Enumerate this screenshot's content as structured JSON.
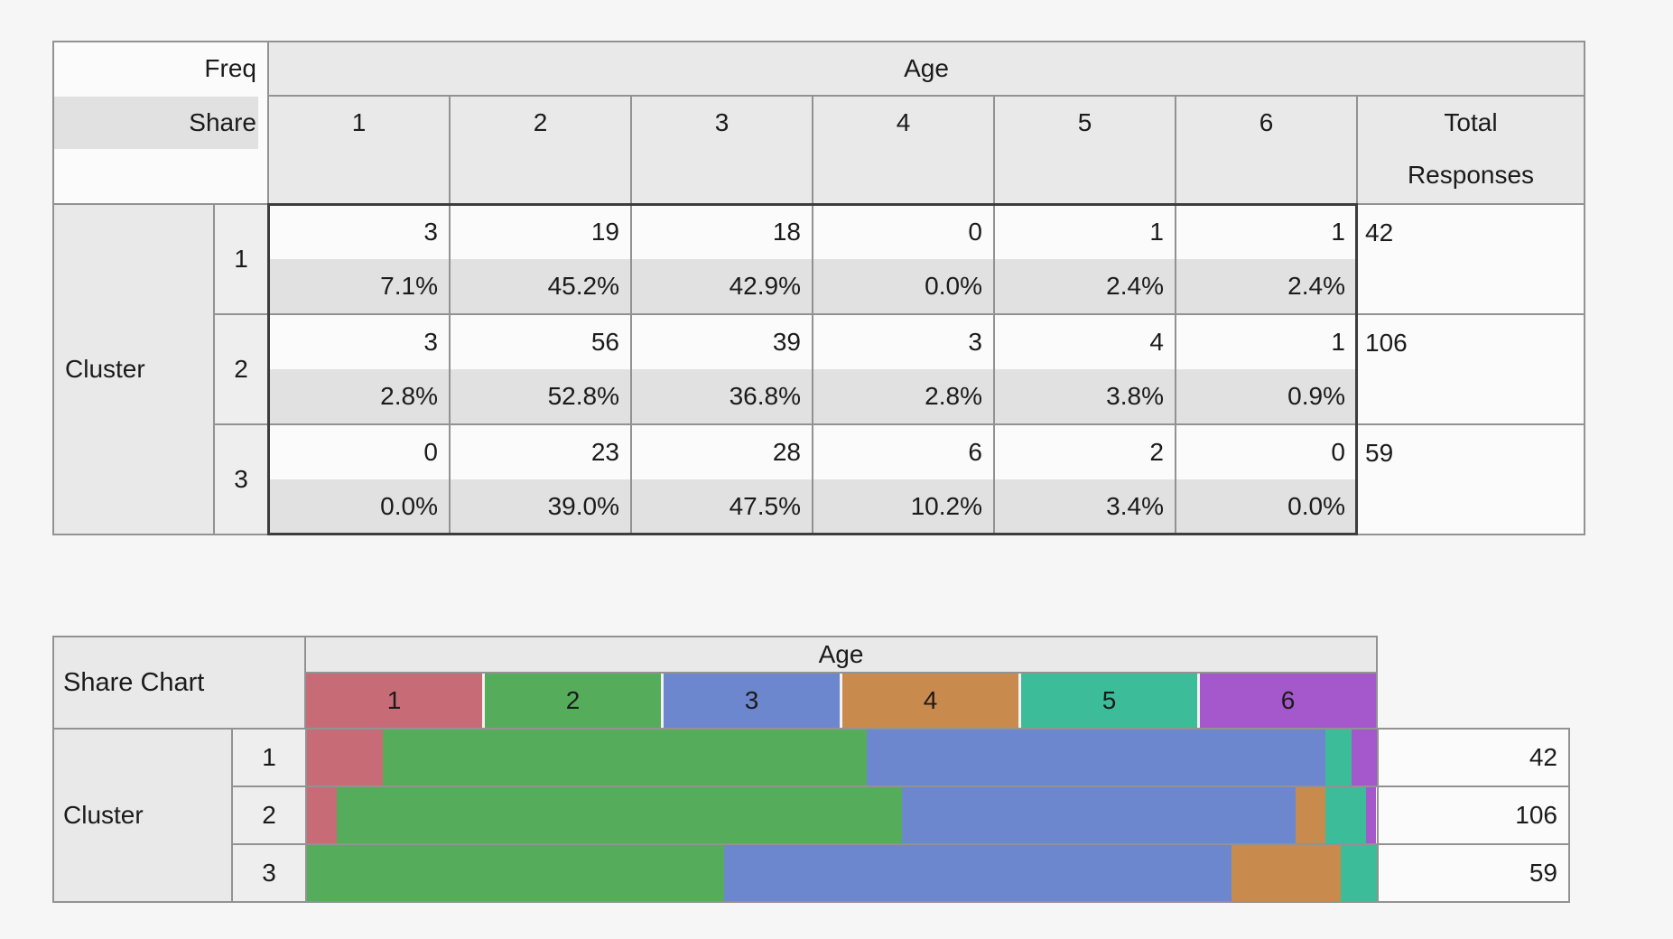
{
  "palette": {
    "grid_line": "#929292",
    "dark_outline": "#3d3d3d",
    "header_bg": "#e9e9e9",
    "share_row_bg": "#e1e1e1",
    "cell_bg": "#fbfbfb",
    "page_bg": "#f6f6f6"
  },
  "freq_table": {
    "corner_freq_label": "Freq",
    "corner_share_label": "Share",
    "age_header": "Age",
    "columns": [
      "1",
      "2",
      "3",
      "4",
      "5",
      "6"
    ],
    "total_header_line1": "Total",
    "total_header_line2": "Responses",
    "row_group_label": "Cluster",
    "rows": [
      {
        "label": "1",
        "freq": [
          "3",
          "19",
          "18",
          "0",
          "1",
          "1"
        ],
        "share": [
          "7.1%",
          "45.2%",
          "42.9%",
          "0.0%",
          "2.4%",
          "2.4%"
        ],
        "total": "42"
      },
      {
        "label": "2",
        "freq": [
          "3",
          "56",
          "39",
          "3",
          "4",
          "1"
        ],
        "share": [
          "2.8%",
          "52.8%",
          "36.8%",
          "2.8%",
          "3.8%",
          "0.9%"
        ],
        "total": "106"
      },
      {
        "label": "3",
        "freq": [
          "0",
          "23",
          "28",
          "6",
          "2",
          "0"
        ],
        "share": [
          "0.0%",
          "39.0%",
          "47.5%",
          "10.2%",
          "3.4%",
          "0.0%"
        ],
        "total": "59"
      }
    ]
  },
  "share_chart": {
    "title": "Share Chart",
    "age_header": "Age",
    "row_group_label": "Cluster",
    "legend": [
      {
        "label": "1",
        "color": "#c76b77"
      },
      {
        "label": "2",
        "color": "#55ad5c"
      },
      {
        "label": "3",
        "color": "#6c87cd"
      },
      {
        "label": "4",
        "color": "#c98b4d"
      },
      {
        "label": "5",
        "color": "#3cbc98"
      },
      {
        "label": "6",
        "color": "#a458cb"
      }
    ],
    "rows": [
      {
        "label": "1",
        "shares": [
          7.1,
          45.2,
          42.9,
          0.0,
          2.4,
          2.4
        ],
        "total": "42"
      },
      {
        "label": "2",
        "shares": [
          2.8,
          52.8,
          36.8,
          2.8,
          3.8,
          0.9
        ],
        "total": "106"
      },
      {
        "label": "3",
        "shares": [
          0.0,
          39.0,
          47.5,
          10.2,
          3.4,
          0.0
        ],
        "total": "59"
      }
    ]
  },
  "chart_data": [
    {
      "type": "table",
      "title": "Freq / Share contingency table: Cluster by Age",
      "column_group": "Age",
      "columns": [
        "1",
        "2",
        "3",
        "4",
        "5",
        "6",
        "Total Responses"
      ],
      "row_group": "Cluster",
      "row_labels": [
        "1",
        "2",
        "3"
      ],
      "freq": [
        [
          3,
          19,
          18,
          0,
          1,
          1
        ],
        [
          3,
          56,
          39,
          3,
          4,
          1
        ],
        [
          0,
          23,
          28,
          6,
          2,
          0
        ]
      ],
      "share_pct": [
        [
          7.1,
          45.2,
          42.9,
          0.0,
          2.4,
          2.4
        ],
        [
          2.8,
          52.8,
          36.8,
          2.8,
          3.8,
          0.9
        ],
        [
          0.0,
          39.0,
          47.5,
          10.2,
          3.4,
          0.0
        ]
      ],
      "total_responses": [
        42,
        106,
        59
      ]
    },
    {
      "type": "bar",
      "subtype": "horizontal-stacked-100pct",
      "title": "Share Chart",
      "categories": [
        "Cluster 1",
        "Cluster 2",
        "Cluster 3"
      ],
      "series": [
        {
          "name": "Age 1",
          "values": [
            7.1,
            2.8,
            0.0
          ],
          "color": "#c76b77"
        },
        {
          "name": "Age 2",
          "values": [
            45.2,
            52.8,
            39.0
          ],
          "color": "#55ad5c"
        },
        {
          "name": "Age 3",
          "values": [
            42.9,
            36.8,
            47.5
          ],
          "color": "#6c87cd"
        },
        {
          "name": "Age 4",
          "values": [
            0.0,
            2.8,
            10.2
          ],
          "color": "#c98b4d"
        },
        {
          "name": "Age 5",
          "values": [
            2.4,
            3.8,
            3.4
          ],
          "color": "#3cbc98"
        },
        {
          "name": "Age 6",
          "values": [
            2.4,
            0.9,
            0.0
          ],
          "color": "#a458cb"
        }
      ],
      "totals": [
        42,
        106,
        59
      ],
      "xlim": [
        0,
        100
      ],
      "legend_position": "top",
      "grid": false
    }
  ]
}
